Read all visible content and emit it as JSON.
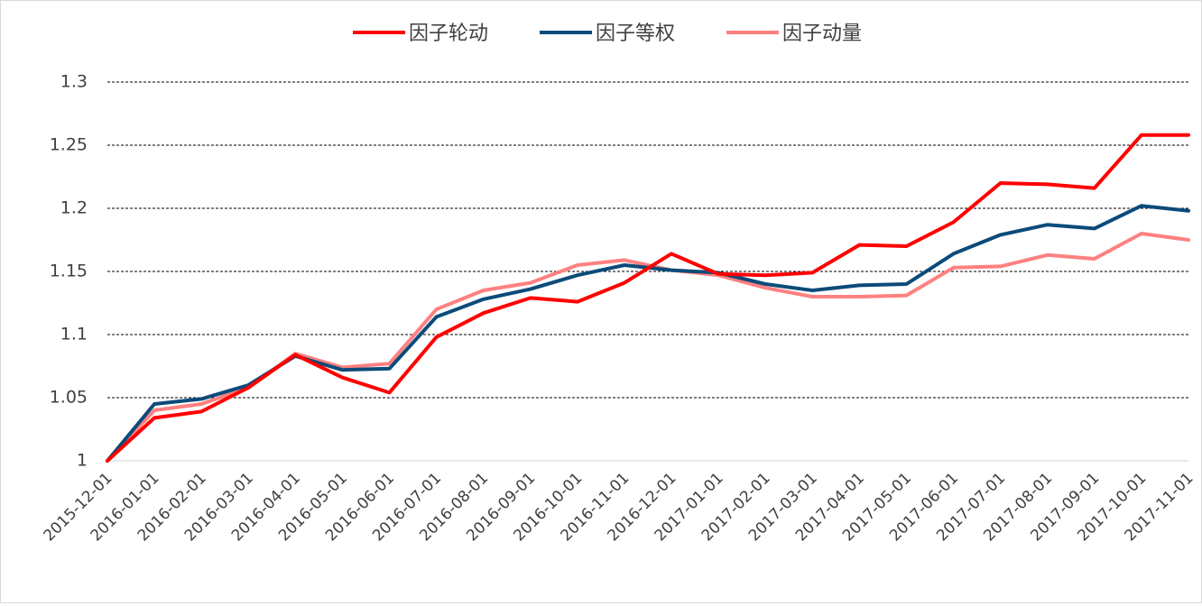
{
  "chart_data": {
    "type": "line",
    "title": "",
    "xlabel": "",
    "ylabel": "",
    "ylim": [
      1,
      1.3
    ],
    "yticks": [
      1,
      1.05,
      1.1,
      1.15,
      1.2,
      1.25,
      1.3
    ],
    "ytick_labels": [
      "1",
      "1.05",
      "1.1",
      "1.15",
      "1.2",
      "1.25",
      "1.3"
    ],
    "grid": "horizontal dashed",
    "legend_position": "top",
    "x": [
      "2015-12-01",
      "2016-01-01",
      "2016-02-01",
      "2016-03-01",
      "2016-04-01",
      "2016-05-01",
      "2016-06-01",
      "2016-07-01",
      "2016-08-01",
      "2016-09-01",
      "2016-10-01",
      "2016-11-01",
      "2016-12-01",
      "2017-01-01",
      "2017-02-01",
      "2017-03-01",
      "2017-04-01",
      "2017-05-01",
      "2017-06-01",
      "2017-07-01",
      "2017-08-01",
      "2017-09-01",
      "2017-10-01",
      "2017-11-01"
    ],
    "series": [
      {
        "name": "因子轮动",
        "color": "#ff0000",
        "values": [
          1.0,
          1.034,
          1.039,
          1.058,
          1.084,
          1.066,
          1.054,
          1.098,
          1.117,
          1.129,
          1.126,
          1.141,
          1.164,
          1.148,
          1.147,
          1.149,
          1.171,
          1.17,
          1.189,
          1.22,
          1.219,
          1.216,
          1.258,
          1.258
        ]
      },
      {
        "name": "因子等权",
        "color": "#0b4b7a",
        "values": [
          1.0,
          1.045,
          1.049,
          1.06,
          1.083,
          1.072,
          1.073,
          1.114,
          1.128,
          1.136,
          1.147,
          1.155,
          1.151,
          1.149,
          1.14,
          1.135,
          1.139,
          1.14,
          1.164,
          1.179,
          1.187,
          1.184,
          1.202,
          1.198
        ]
      },
      {
        "name": "因子动量",
        "color": "#ff8080",
        "values": [
          1.0,
          1.04,
          1.045,
          1.058,
          1.085,
          1.074,
          1.077,
          1.12,
          1.135,
          1.141,
          1.155,
          1.159,
          1.151,
          1.147,
          1.137,
          1.13,
          1.13,
          1.131,
          1.153,
          1.154,
          1.163,
          1.16,
          1.18,
          1.175
        ]
      }
    ]
  }
}
